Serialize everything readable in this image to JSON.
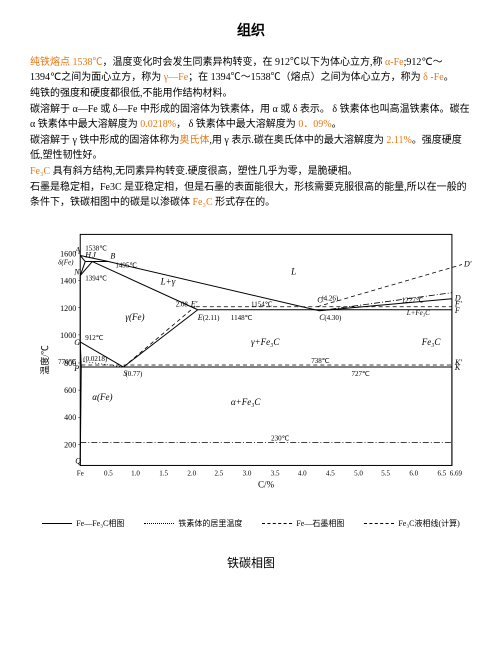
{
  "title": "组织",
  "paragraphs": [
    {
      "segments": [
        {
          "text": "纯铁熔点 1538℃",
          "orange": true
        },
        {
          "text": "，温度变化时会发生同素异构转变，在 912℃以下为体心立方,称 ",
          "orange": false
        },
        {
          "text": "α-Fe",
          "orange": true
        },
        {
          "text": ";912℃～1394℃之间为面心立方，称为 ",
          "orange": false
        },
        {
          "text": "γ—Fe",
          "orange": true
        },
        {
          "text": "；在 1394℃～1538℃（熔点）之间为体心立方，称为 ",
          "orange": false
        },
        {
          "text": "δ -Fe",
          "orange": true
        },
        {
          "text": "。",
          "orange": false
        }
      ]
    },
    {
      "segments": [
        {
          "text": "纯铁的强度和硬度都很低,不能用作结构材料。",
          "orange": false
        }
      ]
    },
    {
      "segments": [
        {
          "text": "碳溶解于 α—Fe 或 δ—Fe 中形成的固溶体为铁素体，用 α 或 δ 表示。 δ 铁素体也叫高温铁素体。碳在 α 铁素体中最大溶解度为 ",
          "orange": false
        },
        {
          "text": "0.0218%",
          "orange": true
        },
        {
          "text": "， δ 铁素体中最大溶解度为 ",
          "orange": false
        },
        {
          "text": "0．09%",
          "orange": true
        },
        {
          "text": "。",
          "orange": false
        }
      ]
    },
    {
      "segments": [
        {
          "text": "碳溶解于 γ 铁中形成的固溶体称为",
          "orange": false
        },
        {
          "text": "奥氏体",
          "orange": true
        },
        {
          "text": ",用 γ 表示.碳在奥氏体中的最大溶解度为 ",
          "orange": false
        },
        {
          "text": "2.11%",
          "orange": true
        },
        {
          "text": "。强度硬度低,塑性韧性好。",
          "orange": false
        }
      ]
    },
    {
      "segments": [
        {
          "text": "Fe₃C",
          "orange": true
        },
        {
          "text": " 具有斜方结构,无同素异构转变.硬度很高，塑性几乎为零，是脆硬相。",
          "orange": false
        }
      ]
    },
    {
      "segments": [
        {
          "text": "石墨是稳定相，Fe3C 是亚稳定相，但是石墨的表面能很大，形核需要克服很高的能量,所以在一般的条件下，铁碳相图中的碳是以渗碳体 ",
          "orange": false
        },
        {
          "text": "Fe₃C",
          "orange": true
        },
        {
          "text": " 形式存在的。",
          "orange": false
        }
      ]
    }
  ],
  "footer": "铁碳相图",
  "legend": [
    {
      "style": "solid",
      "label": "Fe—Fe₃C相图"
    },
    {
      "style": "dotted",
      "label": "铁素体的居里温度"
    },
    {
      "style": "dashed",
      "label": "Fe—石墨相图"
    },
    {
      "style": "dashdot",
      "label": "Fe₃C液相线(计算)"
    }
  ],
  "chart": {
    "xlim": [
      0,
      6.69
    ],
    "ylim": [
      0,
      1700
    ],
    "ylabel": "温度/℃",
    "xlabel": "C/%",
    "xticks": [
      "Fe",
      "0.5",
      "1.0",
      "1.5",
      "2.0",
      "2.5",
      "3.0",
      "3.5",
      "4.0",
      "4.5",
      "5.0",
      "5.5",
      "6.0",
      "6.5",
      "6.69"
    ],
    "yticks": [
      200,
      400,
      600,
      800,
      1000,
      1200,
      1400,
      1600
    ],
    "annotations": {
      "A": "1538℃",
      "B": "1495℃",
      "N": "1394℃",
      "G": "912℃",
      "P": "(0.0218)",
      "S": "(0.77)",
      "E": "(2.11)",
      "C": "(4.30)",
      "C2": "(4.26)",
      "E2": "2.08",
      "T727": "727℃",
      "T738": "738℃",
      "T770": "770℃",
      "T1148": "1148℃",
      "T1154": "1154℃",
      "T1227": "1227℃",
      "T230": "230℃"
    },
    "regions": {
      "L": "L",
      "Lg": "L+γ",
      "g": "γ(Fe)",
      "gFe3C": "γ+Fe₃C",
      "a": "α(Fe)",
      "aFe3C": "α+Fe₃C",
      "Fe3C": "Fe₃C",
      "LFe3C": "L+Fe₃C",
      "dFe": "δ(Fe)"
    },
    "colors": {
      "line": "#000000",
      "bg": "#ffffff",
      "grid": "#000000"
    }
  }
}
